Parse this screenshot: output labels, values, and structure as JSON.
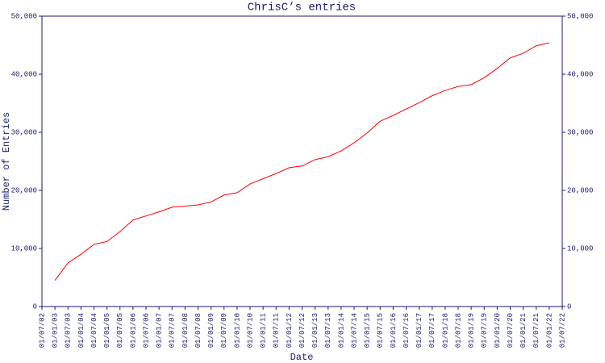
{
  "chart_data": {
    "type": "line",
    "title": "ChrisC’s entries",
    "x_label": "Date",
    "y_label": "Number of Entries",
    "categories": [
      "01/07/02",
      "01/01/03",
      "01/07/03",
      "01/01/04",
      "01/07/04",
      "01/01/05",
      "01/07/05",
      "01/01/06",
      "01/07/06",
      "01/01/07",
      "01/07/07",
      "01/01/08",
      "01/07/08",
      "01/01/09",
      "01/07/09",
      "01/01/10",
      "01/07/10",
      "01/01/11",
      "01/07/11",
      "01/01/12",
      "01/07/12",
      "01/01/13",
      "01/07/13",
      "01/01/14",
      "01/07/14",
      "01/01/15",
      "01/07/15",
      "01/01/16",
      "01/07/16",
      "01/01/17",
      "01/07/17",
      "01/01/18",
      "01/07/18",
      "01/01/19",
      "01/07/19",
      "01/01/20",
      "01/07/20",
      "01/01/21",
      "01/07/21",
      "01/01/22",
      "01/07/22"
    ],
    "series": [
      {
        "name": "Entries",
        "color": "#ff0000",
        "values": [
          null,
          4500,
          7500,
          9000,
          10700,
          11200,
          12900,
          14900,
          15600,
          16300,
          17100,
          17300,
          17500,
          18000,
          19200,
          19600,
          21100,
          22000,
          22900,
          23900,
          24200,
          25300,
          25800,
          26800,
          28200,
          29900,
          31900,
          32900,
          34000,
          35100,
          36300,
          37200,
          37900,
          38200,
          39400,
          41000,
          42800,
          43600,
          44900,
          45400,
          null
        ]
      }
    ],
    "ylim": [
      0,
      50000
    ],
    "yticks": [
      0,
      {
        "value": 10000,
        "label": "10,000"
      },
      {
        "value": 20000,
        "label": "20,000"
      },
      {
        "value": 30000,
        "label": "30,000"
      },
      {
        "value": 40000,
        "label": "40,000"
      },
      {
        "value": 50000,
        "label": "50,000"
      }
    ],
    "axis_color": "#1a1a6e"
  }
}
